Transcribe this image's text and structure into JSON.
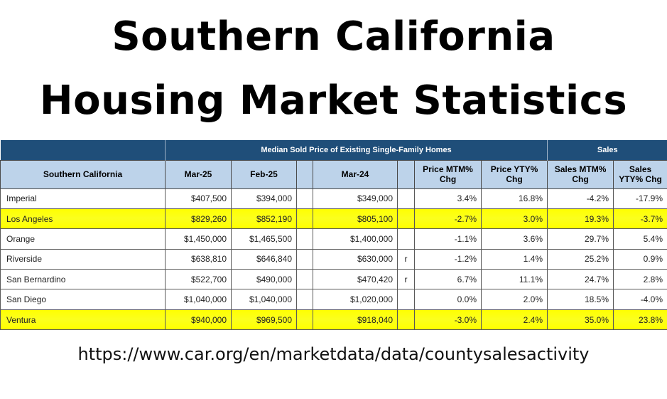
{
  "title": {
    "line1": "Southern California",
    "line2": "Housing Market Statistics"
  },
  "table": {
    "group_headers": {
      "price": "Median Sold Price of Existing Single-Family Homes",
      "sales": "Sales"
    },
    "columns": {
      "region": "Southern California",
      "mar25": "Mar-25",
      "feb25": "Feb-25",
      "mar24": "Mar-24",
      "price_mtm": "Price MTM% Chg",
      "price_yty": "Price YTY% Chg",
      "sales_mtm": "Sales MTM% Chg",
      "sales_yty": "Sales YTY% Chg"
    },
    "rows": [
      {
        "county": "Imperial",
        "mar25": "$407,500",
        "feb25": "$394,000",
        "mar24": "$349,000",
        "flag": "",
        "price_mtm": "3.4%",
        "price_yty": "16.8%",
        "sales_mtm": "-4.2%",
        "sales_yty": "-17.9%",
        "highlighted": false
      },
      {
        "county": "Los Angeles",
        "mar25": "$829,260",
        "feb25": "$852,190",
        "mar24": "$805,100",
        "flag": "",
        "price_mtm": "-2.7%",
        "price_yty": "3.0%",
        "sales_mtm": "19.3%",
        "sales_yty": "-3.7%",
        "highlighted": true
      },
      {
        "county": "Orange",
        "mar25": "$1,450,000",
        "feb25": "$1,465,500",
        "mar24": "$1,400,000",
        "flag": "",
        "price_mtm": "-1.1%",
        "price_yty": "3.6%",
        "sales_mtm": "29.7%",
        "sales_yty": "5.4%",
        "highlighted": false
      },
      {
        "county": "Riverside",
        "mar25": "$638,810",
        "feb25": "$646,840",
        "mar24": "$630,000",
        "flag": "r",
        "price_mtm": "-1.2%",
        "price_yty": "1.4%",
        "sales_mtm": "25.2%",
        "sales_yty": "0.9%",
        "highlighted": false
      },
      {
        "county": "San Bernardino",
        "mar25": "$522,700",
        "feb25": "$490,000",
        "mar24": "$470,420",
        "flag": "r",
        "price_mtm": "6.7%",
        "price_yty": "11.1%",
        "sales_mtm": "24.7%",
        "sales_yty": "2.8%",
        "highlighted": false
      },
      {
        "county": "San Diego",
        "mar25": "$1,040,000",
        "feb25": "$1,040,000",
        "mar24": "$1,020,000",
        "flag": "",
        "price_mtm": "0.0%",
        "price_yty": "2.0%",
        "sales_mtm": "18.5%",
        "sales_yty": "-4.0%",
        "highlighted": false
      },
      {
        "county": "Ventura",
        "mar25": "$940,000",
        "feb25": "$969,500",
        "mar24": "$918,040",
        "flag": "",
        "price_mtm": "-3.0%",
        "price_yty": "2.4%",
        "sales_mtm": "35.0%",
        "sales_yty": "23.8%",
        "highlighted": true
      }
    ]
  },
  "source_url": "https://www.car.org/en/marketdata/data/countysalesactivity",
  "colors": {
    "header_dark": "#1f4e79",
    "header_light": "#bdd3ea",
    "highlight": "#ffff00"
  },
  "chart_data": {
    "type": "table",
    "columns": [
      "Southern California",
      "Mar-25",
      "Feb-25",
      "Mar-24",
      "Price MTM% Chg",
      "Price YTY% Chg",
      "Sales MTM% Chg",
      "Sales YTY% Chg"
    ],
    "rows": [
      [
        "Imperial",
        407500,
        394000,
        349000,
        3.4,
        16.8,
        -4.2,
        -17.9
      ],
      [
        "Los Angeles",
        829260,
        852190,
        805100,
        -2.7,
        3.0,
        19.3,
        -3.7
      ],
      [
        "Orange",
        1450000,
        1465500,
        1400000,
        -1.1,
        3.6,
        29.7,
        5.4
      ],
      [
        "Riverside",
        638810,
        646840,
        630000,
        -1.2,
        1.4,
        25.2,
        0.9
      ],
      [
        "San Bernardino",
        522700,
        490000,
        470420,
        6.7,
        11.1,
        24.7,
        2.8
      ],
      [
        "San Diego",
        1040000,
        1040000,
        1020000,
        0.0,
        2.0,
        18.5,
        -4.0
      ],
      [
        "Ventura",
        940000,
        969500,
        918040,
        -3.0,
        2.4,
        35.0,
        23.8
      ]
    ]
  }
}
